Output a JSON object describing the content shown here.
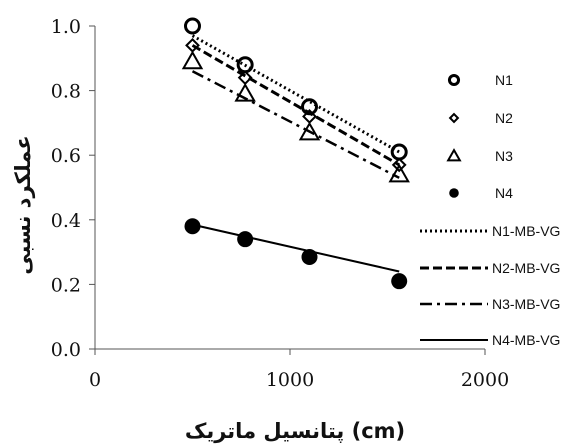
{
  "chart_data": {
    "type": "scatter",
    "xlabel": "پتانسیل ماتریک (cm)",
    "ylabel": "عملکرد نسبی",
    "xlim": [
      0,
      2000
    ],
    "ylim": [
      0,
      1.0
    ],
    "x_ticks": [
      0,
      1000,
      2000
    ],
    "y_ticks": [
      0.0,
      0.2,
      0.4,
      0.6,
      0.8,
      1.0
    ],
    "x_tick_labels": [
      "0",
      "1000",
      "2000"
    ],
    "y_tick_labels": [
      "0.0",
      "0.2",
      "0.4",
      "0.6",
      "0.8",
      "1.0"
    ],
    "grid": false,
    "legend_position": "right",
    "series": [
      {
        "name": "N1",
        "kind": "points",
        "marker": "circle-open",
        "x": [
          500,
          770,
          1100,
          1560
        ],
        "y": [
          1.0,
          0.88,
          0.75,
          0.61
        ]
      },
      {
        "name": "N2",
        "kind": "points",
        "marker": "diamond-open",
        "x": [
          500,
          770,
          1100,
          1560
        ],
        "y": [
          0.94,
          0.84,
          0.72,
          0.57
        ]
      },
      {
        "name": "N3",
        "kind": "points",
        "marker": "triangle-open",
        "x": [
          500,
          770,
          1100,
          1560
        ],
        "y": [
          0.89,
          0.79,
          0.67,
          0.54
        ]
      },
      {
        "name": "N4",
        "kind": "points",
        "marker": "circle-filled",
        "x": [
          500,
          770,
          1100,
          1560
        ],
        "y": [
          0.38,
          0.34,
          0.285,
          0.21
        ]
      },
      {
        "name": "N1-MB-VG",
        "kind": "line",
        "dash": "dotted",
        "x": [
          500,
          1560
        ],
        "y": [
          0.97,
          0.61
        ]
      },
      {
        "name": "N2-MB-VG",
        "kind": "line",
        "dash": "dashed",
        "x": [
          500,
          1560
        ],
        "y": [
          0.94,
          0.57
        ]
      },
      {
        "name": "N3-MB-VG",
        "kind": "line",
        "dash": "dashdot",
        "x": [
          500,
          1560
        ],
        "y": [
          0.86,
          0.53
        ]
      },
      {
        "name": "N4-MB-VG",
        "kind": "line",
        "dash": "solid",
        "x": [
          500,
          1560
        ],
        "y": [
          0.385,
          0.24
        ]
      }
    ]
  }
}
